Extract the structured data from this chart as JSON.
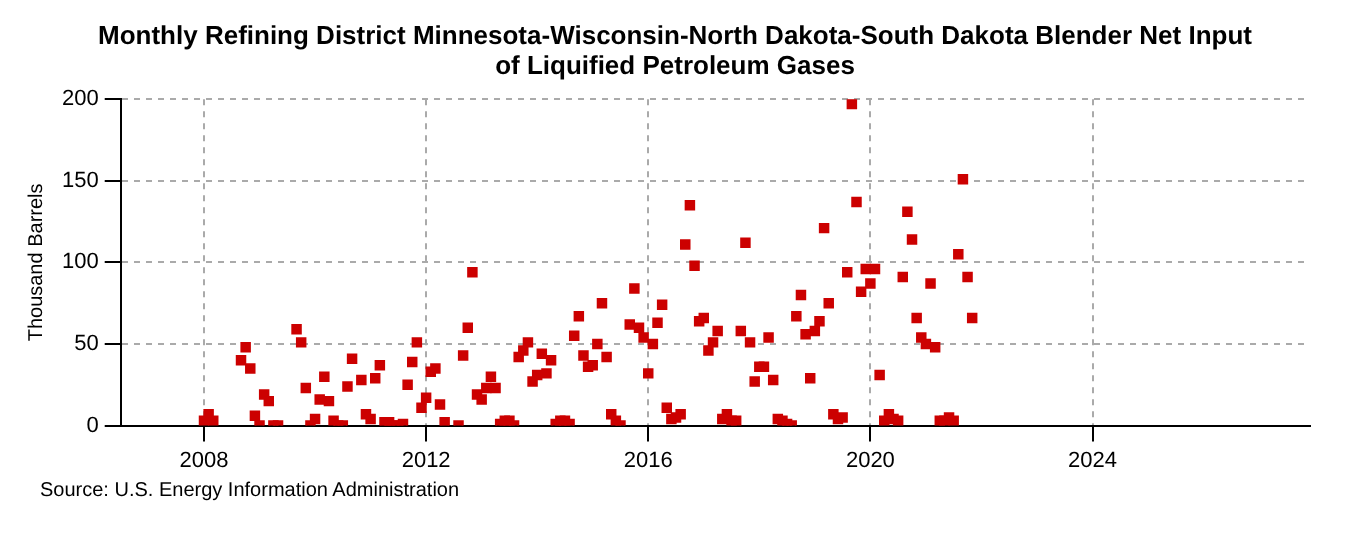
{
  "chart_data": {
    "type": "scatter",
    "title": "Monthly Refining District Minnesota-Wisconsin-North Dakota-South Dakota Blender Net Input of Liquified Petroleum Gases",
    "ylabel": "Thousand Barrels",
    "annotations": [
      "Source: U.S. Energy Information Administration"
    ],
    "xlim": [
      "2006-07",
      "2027-12"
    ],
    "xticks": [
      "2008",
      "2012",
      "2016",
      "2020",
      "2024"
    ],
    "ylim": [
      0,
      200
    ],
    "yticks": [
      0,
      50,
      100,
      150,
      200
    ],
    "grid": true,
    "marker": "square",
    "series": [
      {
        "color": "#cc0000",
        "x": [
          "2008-01",
          "2008-02",
          "2008-03",
          "2008-09",
          "2008-10",
          "2008-11",
          "2008-12",
          "2009-01",
          "2009-02",
          "2009-03",
          "2009-04",
          "2009-05",
          "2009-09",
          "2009-10",
          "2009-11",
          "2009-12",
          "2010-01",
          "2010-02",
          "2010-03",
          "2010-04",
          "2010-05",
          "2010-06",
          "2010-07",
          "2010-08",
          "2010-09",
          "2010-11",
          "2010-12",
          "2011-01",
          "2011-02",
          "2011-03",
          "2011-04",
          "2011-05",
          "2011-06",
          "2011-07",
          "2011-08",
          "2011-09",
          "2011-10",
          "2011-11",
          "2011-12",
          "2012-01",
          "2012-02",
          "2012-03",
          "2012-04",
          "2012-05",
          "2012-08",
          "2012-09",
          "2012-10",
          "2012-11",
          "2012-12",
          "2013-01",
          "2013-02",
          "2013-03",
          "2013-04",
          "2013-05",
          "2013-06",
          "2013-07",
          "2013-08",
          "2013-09",
          "2013-10",
          "2013-11",
          "2013-12",
          "2014-01",
          "2014-02",
          "2014-03",
          "2014-04",
          "2014-05",
          "2014-06",
          "2014-07",
          "2014-08",
          "2014-09",
          "2014-10",
          "2014-11",
          "2014-12",
          "2015-01",
          "2015-02",
          "2015-03",
          "2015-04",
          "2015-05",
          "2015-06",
          "2015-07",
          "2015-09",
          "2015-10",
          "2015-11",
          "2015-12",
          "2016-01",
          "2016-02",
          "2016-03",
          "2016-04",
          "2016-05",
          "2016-06",
          "2016-07",
          "2016-08",
          "2016-09",
          "2016-10",
          "2016-11",
          "2016-12",
          "2017-01",
          "2017-02",
          "2017-03",
          "2017-04",
          "2017-05",
          "2017-06",
          "2017-07",
          "2017-08",
          "2017-09",
          "2017-10",
          "2017-11",
          "2017-12",
          "2018-01",
          "2018-02",
          "2018-03",
          "2018-04",
          "2018-05",
          "2018-06",
          "2018-07",
          "2018-08",
          "2018-09",
          "2018-10",
          "2018-11",
          "2018-12",
          "2019-01",
          "2019-02",
          "2019-03",
          "2019-04",
          "2019-05",
          "2019-06",
          "2019-07",
          "2019-08",
          "2019-09",
          "2019-10",
          "2019-11",
          "2019-12",
          "2020-01",
          "2020-02",
          "2020-03",
          "2020-04",
          "2020-05",
          "2020-06",
          "2020-07",
          "2020-08",
          "2020-09",
          "2020-10",
          "2020-11",
          "2020-12",
          "2021-01",
          "2021-02",
          "2021-03",
          "2021-04",
          "2021-05",
          "2021-06",
          "2021-07",
          "2021-08",
          "2021-09",
          "2021-10",
          "2021-11"
        ],
        "values": [
          3,
          7,
          3,
          40,
          48,
          35,
          6,
          0,
          19,
          15,
          0,
          0,
          59,
          51,
          23,
          0,
          4,
          16,
          30,
          15,
          3,
          0,
          0,
          24,
          41,
          28,
          7,
          4,
          29,
          37,
          2,
          2,
          0,
          0,
          1,
          25,
          39,
          51,
          11,
          17,
          33,
          35,
          13,
          2,
          0,
          43,
          60,
          94,
          19,
          16,
          23,
          30,
          23,
          1,
          3,
          3,
          0,
          42,
          46,
          51,
          27,
          31,
          44,
          32,
          40,
          1,
          3,
          3,
          1,
          55,
          67,
          43,
          36,
          37,
          50,
          75,
          42,
          7,
          3,
          0,
          62,
          84,
          60,
          54,
          32,
          50,
          63,
          74,
          11,
          4,
          5,
          7,
          111,
          135,
          98,
          64,
          66,
          46,
          51,
          58,
          4,
          7,
          3,
          3,
          58,
          112,
          51,
          27,
          36,
          36,
          54,
          28,
          4,
          3,
          1,
          0,
          67,
          80,
          56,
          29,
          58,
          64,
          121,
          75,
          7,
          4,
          5,
          94,
          197,
          137,
          82,
          96,
          87,
          96,
          31,
          3,
          7,
          4,
          3,
          91,
          131,
          114,
          66,
          54,
          50,
          87,
          48,
          3,
          3,
          5,
          3,
          105,
          151,
          91,
          66
        ]
      }
    ]
  }
}
